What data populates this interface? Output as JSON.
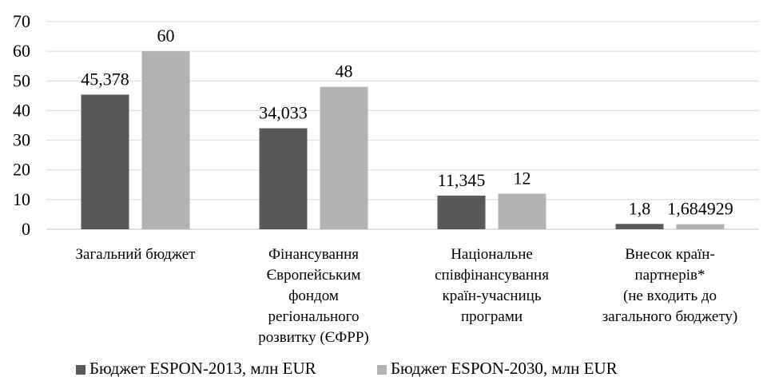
{
  "chart_data": {
    "type": "bar",
    "title": "",
    "xlabel": "",
    "ylabel": "",
    "ylim": [
      0,
      70
    ],
    "yticks": [
      "0",
      "10",
      "20",
      "30",
      "40",
      "50",
      "60",
      "70"
    ],
    "grid": true,
    "legend_position": "bottom",
    "categories": [
      [
        "Загальний бюджет"
      ],
      [
        "Фінансування",
        "Європейським",
        "фондом",
        "регіонального",
        "розвитку (ЄФРР)"
      ],
      [
        "Національне",
        "співфінансування",
        "країн-учасниць",
        "програми"
      ],
      [
        "Внесок країн-",
        "партнерів*",
        "(не входить до",
        "загального бюджету)"
      ]
    ],
    "series": [
      {
        "name": "Бюджет ESPON-2013, млн EUR",
        "color": "#595959",
        "values": [
          45.378,
          34.033,
          11.345,
          1.8
        ],
        "labels": [
          "45,378",
          "34,033",
          "11,345",
          "1,8"
        ]
      },
      {
        "name": "Бюджет ESPON-2030, млн EUR",
        "color": "#b3b3b3",
        "values": [
          60,
          48,
          12,
          1.684929
        ],
        "labels": [
          "60",
          "48",
          "12",
          "1,684929"
        ]
      }
    ]
  }
}
